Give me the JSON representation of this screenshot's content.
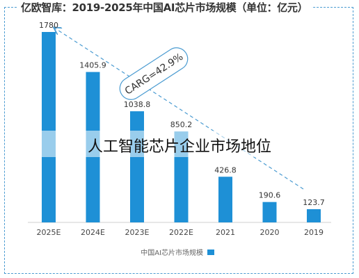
{
  "header": {
    "title": "亿欧智库：2019-2025年中国AI芯片市场规模（单位：亿元）"
  },
  "overlay": {
    "caption": "人工智能芯片企业市场地位"
  },
  "colors": {
    "bar": "#1e90d6",
    "border": "#4a9bd1",
    "arrow": "#4a9bd1",
    "axis": "#cfcfcf"
  },
  "chart_data": {
    "type": "bar",
    "title": "亿欧智库：2019-2025年中国AI芯片市场规模（单位：亿元）",
    "categories": [
      "2025E",
      "2024E",
      "2023E",
      "2022E",
      "2021",
      "2020",
      "2019"
    ],
    "series": [
      {
        "name": "中国AI芯片市场规模",
        "values": [
          1780,
          1405.9,
          1038.8,
          850.2,
          426.8,
          190.6,
          123.7
        ]
      }
    ],
    "value_labels": [
      "1780",
      "1405.9",
      "1038.8",
      "850.2",
      "426.8",
      "190.6",
      "123.7"
    ],
    "annotation": "CARG=42.9%",
    "legend_position": "bottom",
    "grid": false
  }
}
